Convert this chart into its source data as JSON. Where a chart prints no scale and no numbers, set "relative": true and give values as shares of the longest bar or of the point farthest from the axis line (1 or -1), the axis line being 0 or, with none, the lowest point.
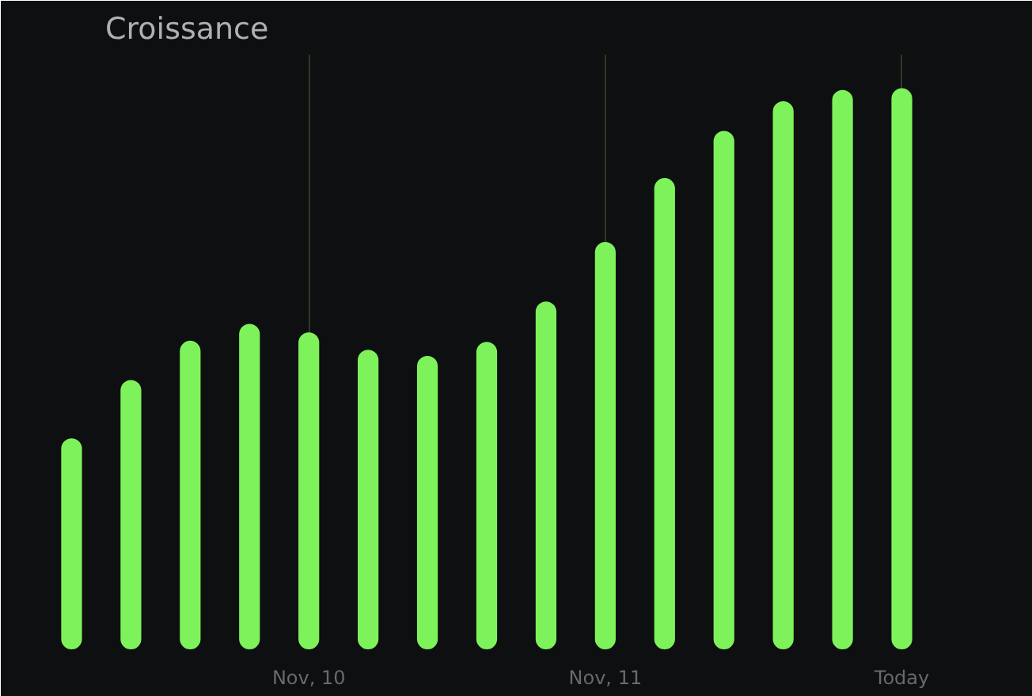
{
  "chart_data": {
    "type": "bar",
    "title": "Croissance",
    "relative": true,
    "categories": [
      null,
      null,
      null,
      null,
      "Nov, 10",
      null,
      null,
      null,
      null,
      "Nov, 11",
      null,
      null,
      null,
      null,
      "Today"
    ],
    "values": [
      0.376,
      0.48,
      0.55,
      0.58,
      0.565,
      0.534,
      0.523,
      0.548,
      0.62,
      0.726,
      0.84,
      0.924,
      0.977,
      0.997,
      1
    ],
    "color": "#7ef25a",
    "grid": "x"
  }
}
